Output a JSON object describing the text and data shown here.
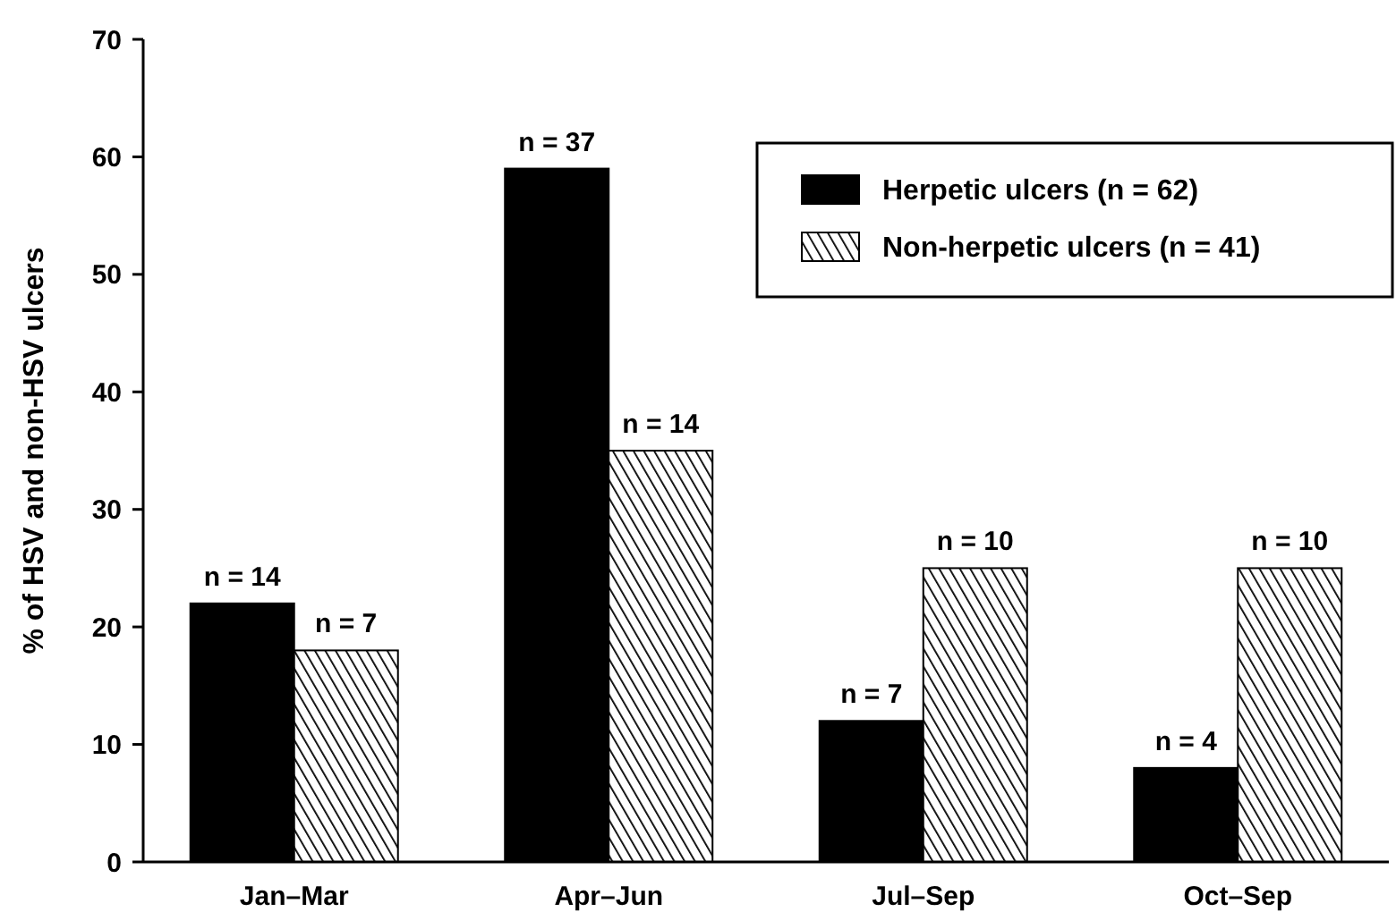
{
  "chart_data": {
    "type": "bar",
    "ylabel": "% of HSV and non-HSV ulcers",
    "categories": [
      "Jan–Mar",
      "Apr–Jun",
      "Jul–Sep",
      "Oct–Sep"
    ],
    "series": [
      {
        "name": "Herpetic ulcers (n = 62)",
        "color": "#000000",
        "values": [
          22,
          59,
          12,
          8
        ]
      },
      {
        "name": "Non-herpetic ulcers (n = 41)",
        "color": "#000000",
        "values": [
          18,
          35,
          25,
          25
        ]
      }
    ],
    "annotations": [
      {
        "text": "n = 14",
        "x": "Jan–Mar",
        "y": 22
      },
      {
        "text": "n = 37",
        "x": "Apr–Jun",
        "y": 59
      },
      {
        "text": "n = 7",
        "x": "Jul–Sep",
        "y": 12
      },
      {
        "text": "n = 4",
        "x": "Oct–Sep",
        "y": 8
      },
      {
        "text": "n = 7",
        "x": "Jan–Mar",
        "y": 18
      },
      {
        "text": "n = 14",
        "x": "Apr–Jun",
        "y": 35
      },
      {
        "text": "n = 10",
        "x": "Jul–Sep",
        "y": 25
      },
      {
        "text": "n = 10",
        "x": "Oct–Sep",
        "y": 25
      }
    ],
    "ylim": [
      0,
      70
    ],
    "yticks": [
      0,
      10,
      20,
      30,
      40,
      50,
      60,
      70
    ],
    "legend": "top right",
    "grid": false
  }
}
